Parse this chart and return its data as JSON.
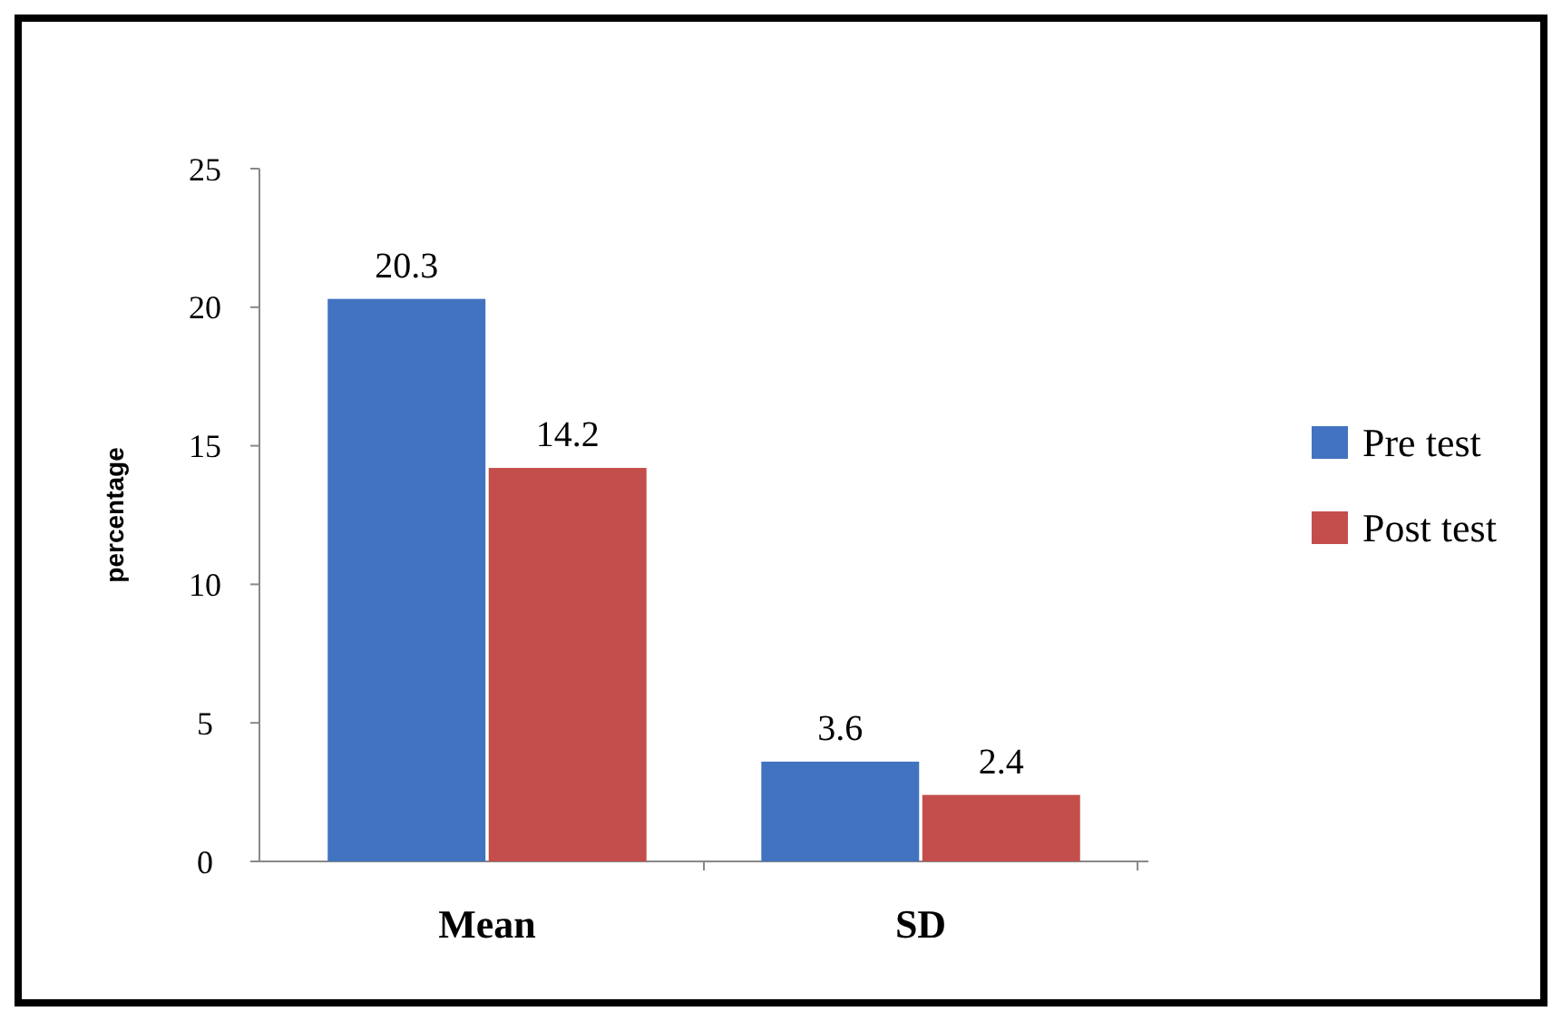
{
  "chart_data": {
    "type": "bar",
    "ylabel": "percentage",
    "categories": [
      "Mean",
      "SD"
    ],
    "series": [
      {
        "name": "Pre test",
        "color": "#4173c0",
        "values": [
          20.3,
          3.6
        ]
      },
      {
        "name": "Post test",
        "color": "#c44e4b",
        "values": [
          14.2,
          2.4
        ]
      }
    ],
    "ylim": [
      0,
      25
    ],
    "yticks": [
      0,
      5,
      10,
      15,
      20,
      25
    ],
    "data_labels": true,
    "legend": "right",
    "grid": false
  }
}
